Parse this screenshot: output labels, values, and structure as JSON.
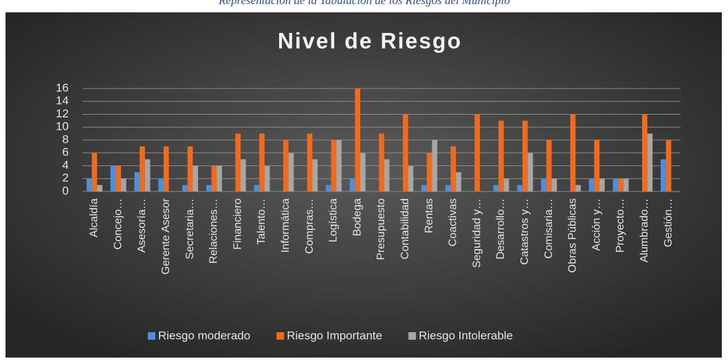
{
  "caption": "Representación de la Tabulación de los Riesgos del Municipio",
  "chart_data": {
    "type": "bar",
    "title": "Nivel de Riesgo",
    "categories": [
      "Alcaldía",
      "Concejo…",
      "Asesoría…",
      "Gerente Asesor",
      "Secretaria…",
      "Relaciones…",
      "Financiero",
      "Talento…",
      "Informática",
      "Compras…",
      "Logística",
      "Bodega",
      "Presupuesto",
      "Contabilidad",
      "Rentas",
      "Coactivas",
      "Seguridad y…",
      "Desarrollo…",
      "Catastros y…",
      "Comisaria…",
      "Obras Públicas",
      "Acción y…",
      "Proyecto…",
      "Alumbrado…",
      "Gestión…"
    ],
    "series": [
      {
        "name": "Riesgo moderado",
        "color": "#4a8fe0",
        "values": [
          2,
          4,
          3,
          2,
          1,
          1,
          0,
          1,
          0,
          0,
          1,
          2,
          0,
          0,
          1,
          1,
          0,
          1,
          1,
          2,
          0,
          2,
          2,
          0,
          5
        ]
      },
      {
        "name": "Riesgo Importante",
        "color": "#f26b1d",
        "values": [
          6,
          4,
          7,
          7,
          7,
          4,
          9,
          9,
          8,
          9,
          8,
          16,
          9,
          12,
          6,
          7,
          12,
          11,
          11,
          8,
          12,
          8,
          2,
          12,
          8
        ]
      },
      {
        "name": "Riesgo Intolerable",
        "color": "#a6a6a6",
        "values": [
          1,
          2,
          5,
          0,
          4,
          4,
          5,
          4,
          6,
          5,
          8,
          6,
          5,
          4,
          8,
          3,
          0,
          2,
          6,
          2,
          1,
          2,
          2,
          9,
          0
        ]
      }
    ],
    "ylim": [
      0,
      16
    ],
    "yticks": [
      0,
      2,
      4,
      6,
      8,
      10,
      12,
      14,
      16
    ],
    "grid": true,
    "legend": "bottom"
  }
}
